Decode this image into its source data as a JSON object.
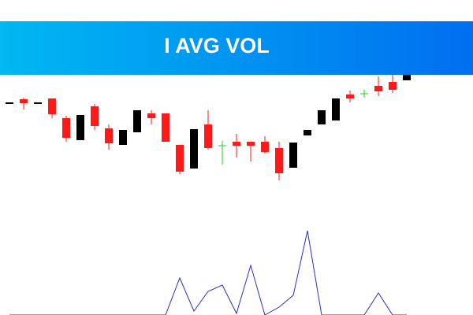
{
  "chart_data": {
    "type": "candlestick",
    "title": "I AVG VOL",
    "up_color": "#000000",
    "down_color": "#ff1a1a",
    "doji_color": "#22cc22",
    "ylim": [
      0,
      150
    ],
    "open": [
      108,
      114,
      108,
      115,
      90,
      62,
      105,
      77,
      56,
      72,
      96,
      96,
      56,
      26,
      82,
      55,
      60,
      60,
      60,
      52,
      27,
      68,
      82,
      87,
      120,
      121,
      131,
      136,
      138
    ],
    "high": [
      110,
      116,
      110,
      115,
      93,
      94,
      108,
      82,
      75,
      100,
      100,
      96,
      56,
      76,
      100,
      61,
      70,
      60,
      67,
      60,
      59,
      75,
      100,
      115,
      125,
      126,
      143,
      145,
      145
    ],
    "low": [
      108,
      101,
      108,
      90,
      60,
      62,
      75,
      50,
      56,
      72,
      82,
      60,
      19,
      26,
      50,
      31,
      40,
      35,
      45,
      11,
      27,
      68,
      82,
      87,
      110,
      116,
      118,
      122,
      138
    ],
    "close": [
      110,
      109,
      110,
      95,
      65,
      94,
      80,
      58,
      75,
      100,
      90,
      60,
      22,
      76,
      52,
      55,
      55,
      55,
      47,
      20,
      59,
      75,
      100,
      115,
      115,
      121,
      124,
      126,
      145
    ],
    "volume": {
      "color": "#2a2fc4",
      "ylim": [
        0,
        110
      ],
      "values": [
        0,
        0,
        0,
        0,
        0,
        0,
        0,
        0,
        0,
        0,
        0,
        0,
        47,
        5,
        30,
        38,
        2,
        63,
        0,
        10,
        25,
        107,
        0,
        0,
        0,
        0,
        28,
        0,
        0
      ]
    }
  }
}
